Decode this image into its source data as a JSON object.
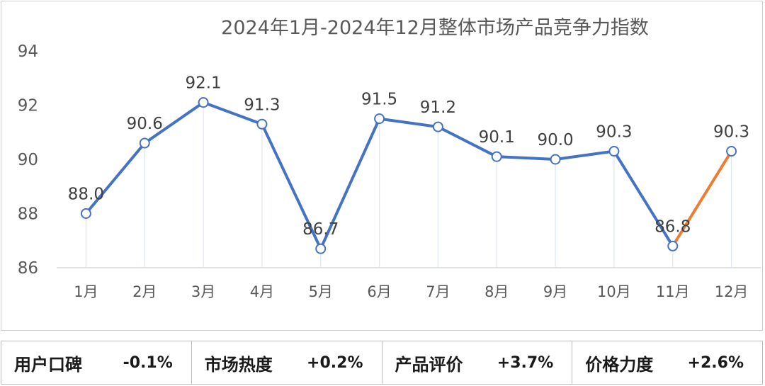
{
  "chart_data": {
    "type": "line",
    "title": "2024年1月-2024年12月整体市场产品竞争力指数",
    "categories": [
      "1月",
      "2月",
      "3月",
      "4月",
      "5月",
      "6月",
      "7月",
      "8月",
      "9月",
      "10月",
      "11月",
      "12月"
    ],
    "values": [
      88.0,
      90.6,
      92.1,
      91.3,
      86.7,
      91.5,
      91.2,
      90.1,
      90.0,
      90.3,
      86.8,
      90.3
    ],
    "data_labels": [
      "88.0",
      "90.6",
      "92.1",
      "91.3",
      "86.7",
      "91.5",
      "91.2",
      "90.1",
      "90.0",
      "90.3",
      "86.8",
      "90.3"
    ],
    "ylim": [
      86,
      94
    ],
    "yticks": [
      "86",
      "88",
      "90",
      "92",
      "94"
    ],
    "line_color": "#4472C4",
    "highlight_color": "#ED7D31",
    "highlight_last_segment": true,
    "grid": false
  },
  "summary": [
    {
      "label": "用户口碑",
      "value": "-0.1%"
    },
    {
      "label": "市场热度",
      "value": "+0.2%"
    },
    {
      "label": "产品评价",
      "value": "+3.7%"
    },
    {
      "label": "价格力度",
      "value": "+2.6%"
    }
  ]
}
